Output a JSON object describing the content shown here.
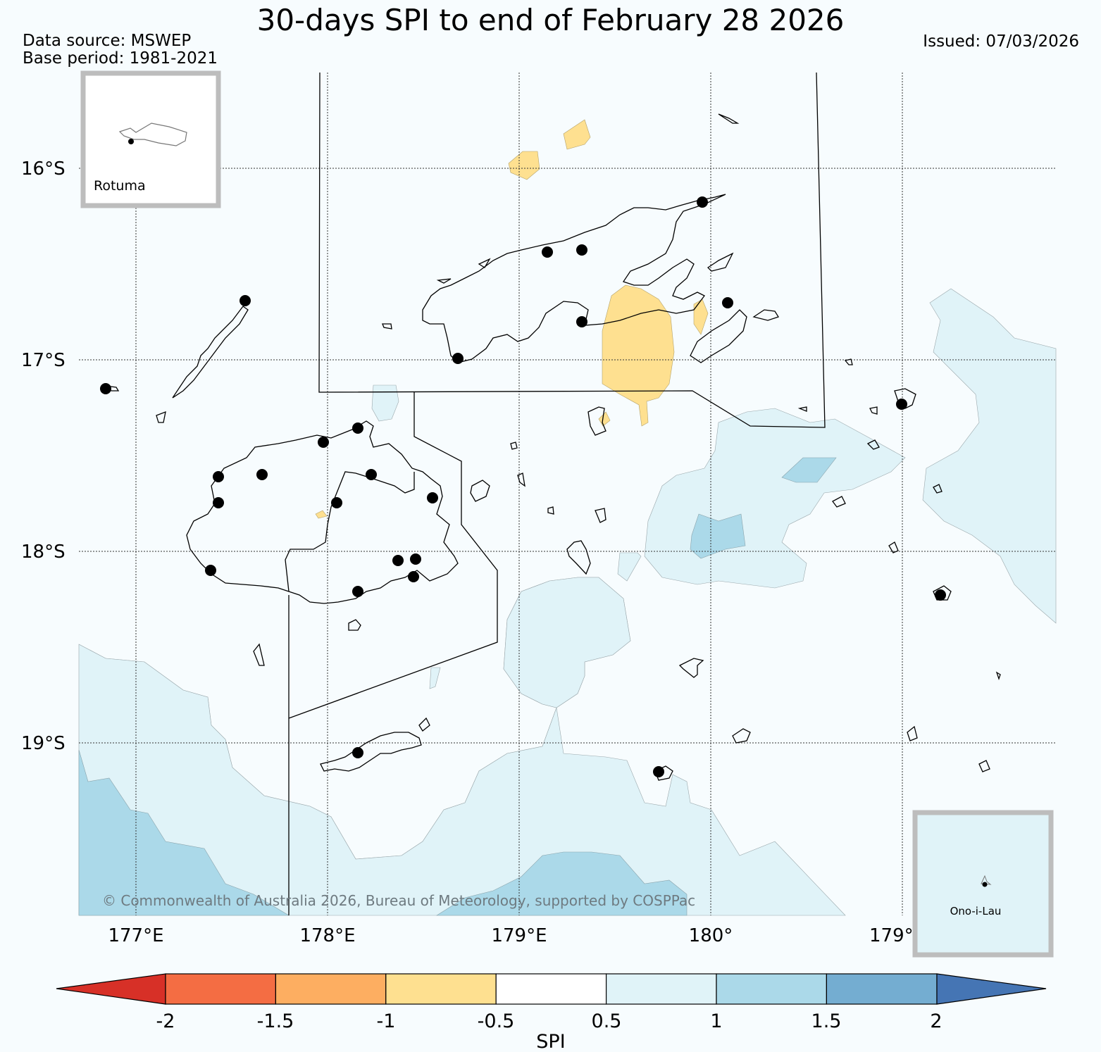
{
  "header": {
    "title": "30-days SPI to end of February 28 2026",
    "source": "Data source: MSWEP",
    "base": "Base period: 1981-2021",
    "issued": "Issued: 07/03/2026"
  },
  "map": {
    "lat_labels": [
      "16°S",
      "17°S",
      "18°S",
      "19°S"
    ],
    "lon_labels": [
      "177°E",
      "178°E",
      "179°E",
      "180°",
      "179°"
    ],
    "copyright": "© Commonwealth of Australia 2026, Bureau of Meteorology, supported by COSPPac",
    "inset_north": "Rotuma",
    "inset_south": "Ono-i-Lau"
  },
  "colorbar": {
    "label": "SPI",
    "ticks": [
      "-2",
      "-1.5",
      "-1",
      "-0.5",
      "0.5",
      "1",
      "1.5",
      "2"
    ],
    "colors": {
      "lt-2": "#d73027",
      "-2to-1.5": "#f46d43",
      "-1.5to-1": "#fdae61",
      "-1to-0.5": "#fee090",
      "-0.5to0.5": "#ffffff",
      "0.5to1": "#e0f3f8",
      "1to1.5": "#abd9e9",
      "1.5to2": "#74add1",
      "gt2": "#4575b4"
    }
  }
}
